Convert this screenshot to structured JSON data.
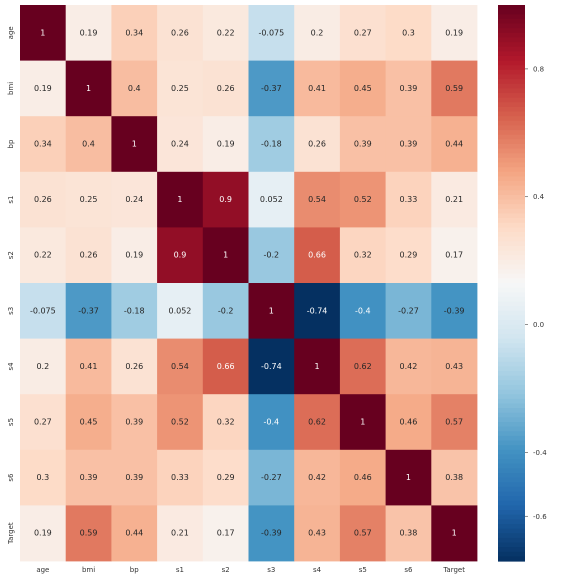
{
  "chart_data": {
    "type": "heatmap",
    "title": "",
    "xlabel": "",
    "ylabel": "",
    "x_labels": [
      "age",
      "bmi",
      "bp",
      "s1",
      "s2",
      "s3",
      "s4",
      "s5",
      "s6",
      "Target"
    ],
    "y_labels": [
      "age",
      "bmi",
      "bp",
      "s1",
      "s2",
      "s3",
      "s4",
      "s5",
      "s6",
      "Target"
    ],
    "values": [
      [
        1,
        0.19,
        0.34,
        0.26,
        0.22,
        -0.075,
        0.2,
        0.27,
        0.3,
        0.19
      ],
      [
        0.19,
        1,
        0.4,
        0.25,
        0.26,
        -0.37,
        0.41,
        0.45,
        0.39,
        0.59
      ],
      [
        0.34,
        0.4,
        1,
        0.24,
        0.19,
        -0.18,
        0.26,
        0.39,
        0.39,
        0.44
      ],
      [
        0.26,
        0.25,
        0.24,
        1,
        0.9,
        0.052,
        0.54,
        0.52,
        0.33,
        0.21
      ],
      [
        0.22,
        0.26,
        0.19,
        0.9,
        1,
        -0.2,
        0.66,
        0.32,
        0.29,
        0.17
      ],
      [
        -0.075,
        -0.37,
        -0.18,
        0.052,
        -0.2,
        1,
        -0.74,
        -0.4,
        -0.27,
        -0.39
      ],
      [
        0.2,
        0.41,
        0.26,
        0.54,
        0.66,
        -0.74,
        1,
        0.62,
        0.42,
        0.43
      ],
      [
        0.27,
        0.45,
        0.39,
        0.52,
        0.32,
        -0.4,
        0.62,
        1,
        0.46,
        0.57
      ],
      [
        0.3,
        0.39,
        0.39,
        0.33,
        0.29,
        -0.27,
        0.42,
        0.46,
        1,
        0.38
      ],
      [
        0.19,
        0.59,
        0.44,
        0.21,
        0.17,
        -0.39,
        0.43,
        0.57,
        0.38,
        1
      ]
    ],
    "value_labels": [
      [
        "1",
        "0.19",
        "0.34",
        "0.26",
        "0.22",
        "-0.075",
        "0.2",
        "0.27",
        "0.3",
        "0.19"
      ],
      [
        "0.19",
        "1",
        "0.4",
        "0.25",
        "0.26",
        "-0.37",
        "0.41",
        "0.45",
        "0.39",
        "0.59"
      ],
      [
        "0.34",
        "0.4",
        "1",
        "0.24",
        "0.19",
        "-0.18",
        "0.26",
        "0.39",
        "0.39",
        "0.44"
      ],
      [
        "0.26",
        "0.25",
        "0.24",
        "1",
        "0.9",
        "0.052",
        "0.54",
        "0.52",
        "0.33",
        "0.21"
      ],
      [
        "0.22",
        "0.26",
        "0.19",
        "0.9",
        "1",
        "-0.2",
        "0.66",
        "0.32",
        "0.29",
        "0.17"
      ],
      [
        "-0.075",
        "-0.37",
        "-0.18",
        "0.052",
        "-0.2",
        "1",
        "-0.74",
        "-0.4",
        "-0.27",
        "-0.39"
      ],
      [
        "0.2",
        "0.41",
        "0.26",
        "0.54",
        "0.66",
        "-0.74",
        "1",
        "0.62",
        "0.42",
        "0.43"
      ],
      [
        "0.27",
        "0.45",
        "0.39",
        "0.52",
        "0.32",
        "-0.4",
        "0.62",
        "1",
        "0.46",
        "0.57"
      ],
      [
        "0.3",
        "0.39",
        "0.39",
        "0.33",
        "0.29",
        "-0.27",
        "0.42",
        "0.46",
        "1",
        "0.38"
      ],
      [
        "0.19",
        "0.59",
        "0.44",
        "0.21",
        "0.17",
        "-0.39",
        "0.43",
        "0.57",
        "0.38",
        "1"
      ]
    ],
    "colormap": "RdBu_r",
    "vmin": -0.74,
    "vmax": 1.0,
    "colorbar": {
      "ticks": [
        -0.6,
        -0.4,
        0.0,
        0.4,
        0.8
      ],
      "tick_labels": [
        "-0.6",
        "-0.4",
        "0.0",
        "0.4",
        "0.8"
      ]
    },
    "colormap_stops": [
      "#053061",
      "#2166ac",
      "#4393c3",
      "#92c5de",
      "#d1e5f0",
      "#f7f7f7",
      "#fddbc7",
      "#f4a582",
      "#d6604d",
      "#b2182b",
      "#67001f"
    ]
  }
}
